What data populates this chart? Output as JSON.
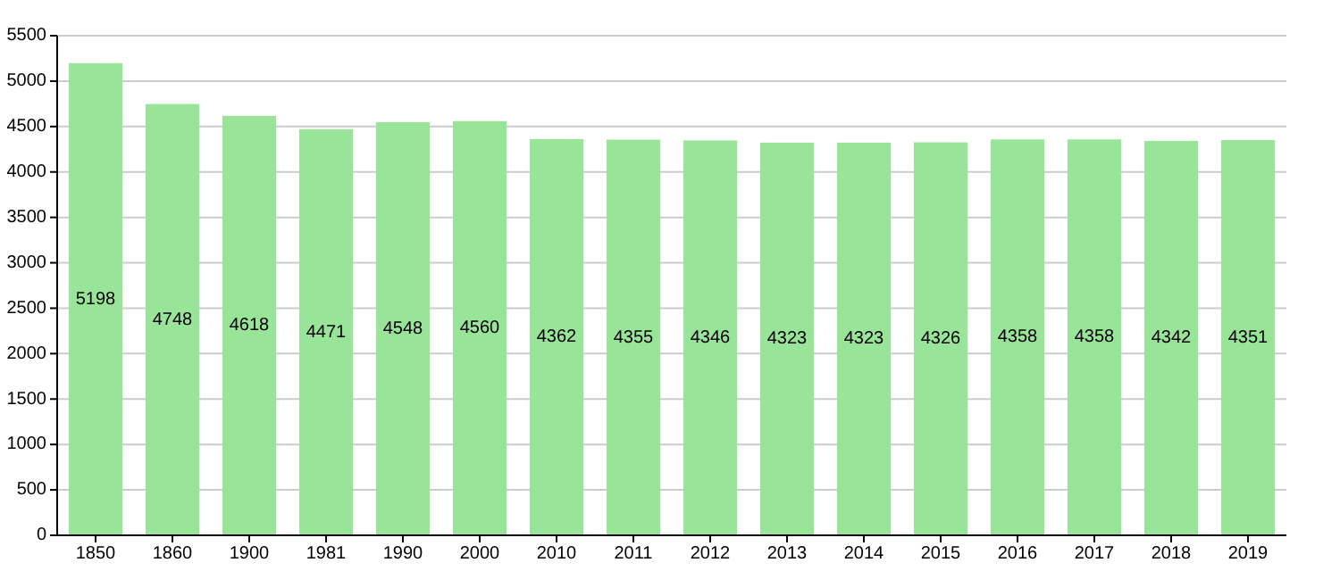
{
  "chart_data": {
    "type": "bar",
    "categories": [
      "1850",
      "1860",
      "1900",
      "1981",
      "1990",
      "2000",
      "2010",
      "2011",
      "2012",
      "2013",
      "2014",
      "2015",
      "2016",
      "2017",
      "2018",
      "2019"
    ],
    "values": [
      5198,
      4748,
      4618,
      4471,
      4548,
      4560,
      4362,
      4355,
      4346,
      4323,
      4323,
      4326,
      4358,
      4358,
      4342,
      4351
    ],
    "color": "#98e498",
    "ylim": [
      0,
      5500
    ],
    "yticks": [
      0,
      500,
      1000,
      1500,
      2000,
      2500,
      3000,
      3500,
      4000,
      4500,
      5000,
      5500
    ],
    "grid": "y",
    "data_labels": true
  }
}
